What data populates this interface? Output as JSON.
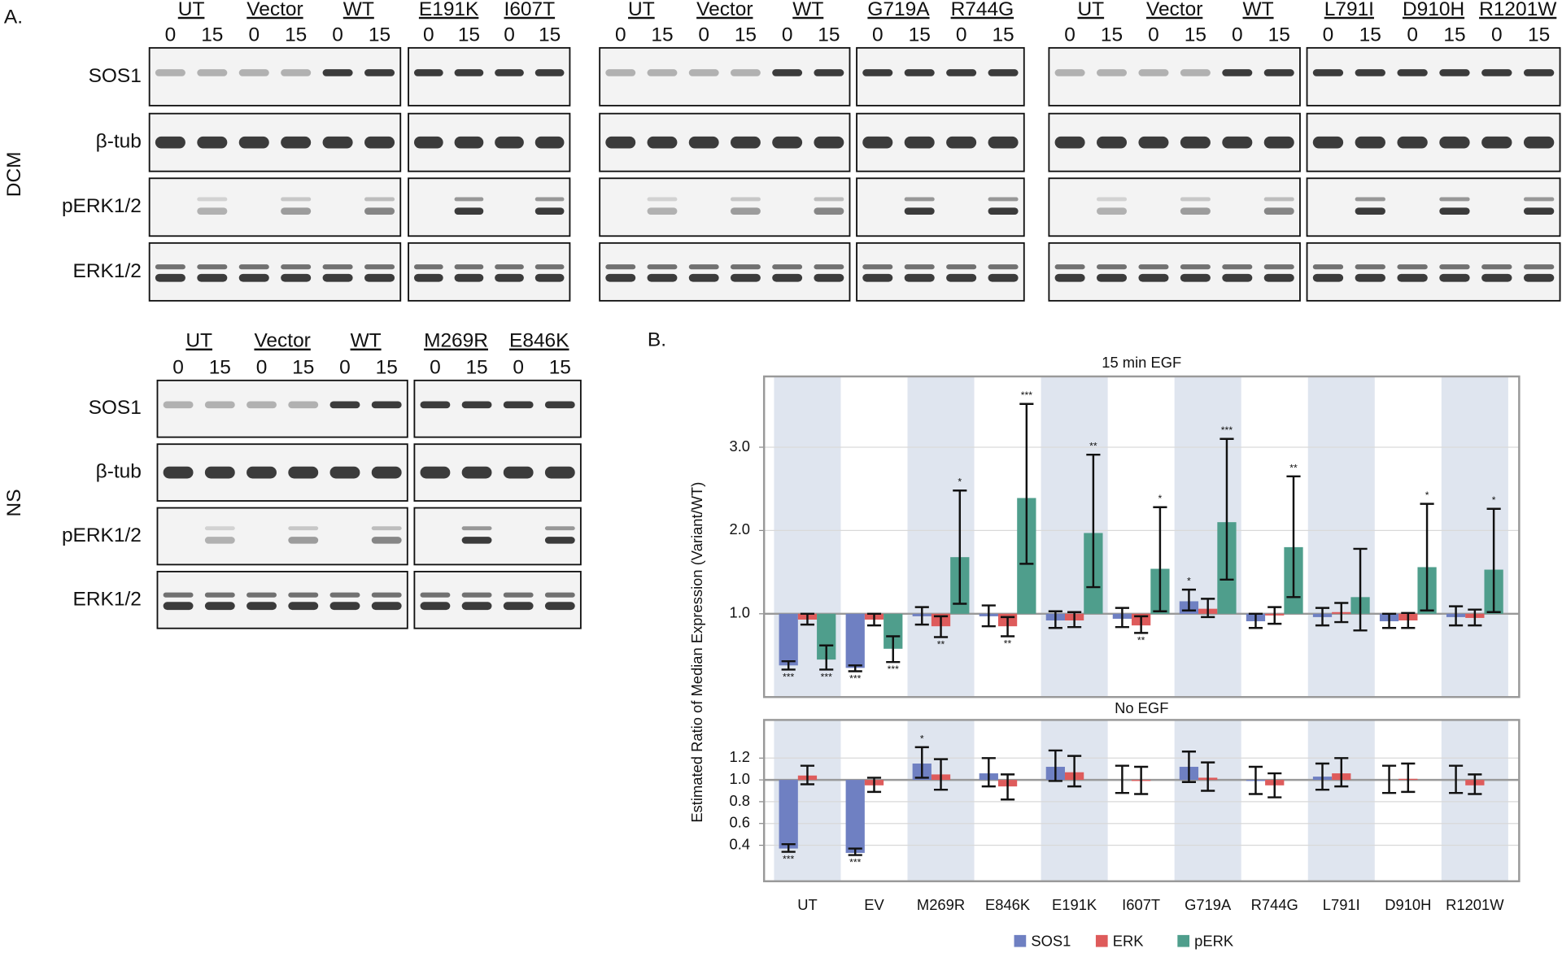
{
  "panel_a": {
    "label": "A.",
    "conditions": [
      {
        "name": "DCM",
        "row_labels": [
          "SOS1",
          "β-tub",
          "pERK1/2",
          "ERK1/2"
        ],
        "sets": [
          {
            "membranes": [
              {
                "groups": [
                  {
                    "name": "UT",
                    "times": [
                      "0",
                      "15"
                    ]
                  },
                  {
                    "name": "Vector",
                    "times": [
                      "0",
                      "15"
                    ]
                  },
                  {
                    "name": "WT",
                    "times": [
                      "0",
                      "15"
                    ]
                  }
                ]
              },
              {
                "groups": [
                  {
                    "name": "E191K",
                    "times": [
                      "0",
                      "15"
                    ]
                  },
                  {
                    "name": "I607T",
                    "times": [
                      "0",
                      "15"
                    ]
                  }
                ]
              }
            ]
          },
          {
            "membranes": [
              {
                "groups": [
                  {
                    "name": "UT",
                    "times": [
                      "0",
                      "15"
                    ]
                  },
                  {
                    "name": "Vector",
                    "times": [
                      "0",
                      "15"
                    ]
                  },
                  {
                    "name": "WT",
                    "times": [
                      "0",
                      "15"
                    ]
                  }
                ]
              },
              {
                "groups": [
                  {
                    "name": "G719A",
                    "times": [
                      "0",
                      "15"
                    ]
                  },
                  {
                    "name": "R744G",
                    "times": [
                      "0",
                      "15"
                    ]
                  }
                ]
              }
            ]
          },
          {
            "membranes": [
              {
                "groups": [
                  {
                    "name": "UT",
                    "times": [
                      "0",
                      "15"
                    ]
                  },
                  {
                    "name": "Vector",
                    "times": [
                      "0",
                      "15"
                    ]
                  },
                  {
                    "name": "WT",
                    "times": [
                      "0",
                      "15"
                    ]
                  }
                ]
              },
              {
                "groups": [
                  {
                    "name": "L791I",
                    "times": [
                      "0",
                      "15"
                    ]
                  },
                  {
                    "name": "D910H",
                    "times": [
                      "0",
                      "15"
                    ]
                  },
                  {
                    "name": "R1201W",
                    "times": [
                      "0",
                      "15"
                    ]
                  }
                ]
              }
            ]
          }
        ]
      },
      {
        "name": "NS",
        "row_labels": [
          "SOS1",
          "β-tub",
          "pERK1/2",
          "ERK1/2"
        ],
        "sets": [
          {
            "membranes": [
              {
                "groups": [
                  {
                    "name": "UT",
                    "times": [
                      "0",
                      "15"
                    ]
                  },
                  {
                    "name": "Vector",
                    "times": [
                      "0",
                      "15"
                    ]
                  },
                  {
                    "name": "WT",
                    "times": [
                      "0",
                      "15"
                    ]
                  }
                ]
              },
              {
                "groups": [
                  {
                    "name": "M269R",
                    "times": [
                      "0",
                      "15"
                    ]
                  },
                  {
                    "name": "E846K",
                    "times": [
                      "0",
                      "15"
                    ]
                  }
                ]
              }
            ]
          }
        ]
      }
    ]
  },
  "panel_b": {
    "label": "B."
  },
  "chart_data": [
    {
      "type": "bar",
      "title": "15 min EGF",
      "ylabel": "Estimated Ratio of Median Expression (Variant/WT)",
      "ylim": [
        0,
        3.85
      ],
      "yticks": [
        {
          "value": 1,
          "label": "1.0"
        },
        {
          "value": 2,
          "label": "2.0"
        },
        {
          "value": 3,
          "label": "3.0"
        }
      ],
      "grid": true,
      "hline": 1,
      "shade_color": "#dfe5ef",
      "series": [
        {
          "name": "SOS1",
          "color": "#6f80c2",
          "values": [
            0.38,
            0.35,
            0.97,
            0.97,
            0.92,
            0.94,
            1.15,
            0.91,
            0.96,
            0.91,
            0.96
          ],
          "ci": [
            [
              0.33,
              0.43
            ],
            [
              0.31,
              0.38
            ],
            [
              0.87,
              1.08
            ],
            [
              0.85,
              1.1
            ],
            [
              0.83,
              1.03
            ],
            [
              0.84,
              1.07
            ],
            [
              1.04,
              1.29
            ],
            [
              0.83,
              1.0
            ],
            [
              0.86,
              1.07
            ],
            [
              0.83,
              1.0
            ],
            [
              0.86,
              1.09
            ]
          ],
          "stars": [
            "***",
            "***",
            null,
            null,
            null,
            null,
            "*",
            null,
            null,
            null,
            null
          ]
        },
        {
          "name": "ERK",
          "color": "#de5b5b",
          "values": [
            0.93,
            0.93,
            0.85,
            0.85,
            0.92,
            0.86,
            1.06,
            0.98,
            1.02,
            0.92,
            0.95
          ],
          "ci": [
            [
              0.87,
              1.0
            ],
            [
              0.86,
              1.0
            ],
            [
              0.72,
              0.97
            ],
            [
              0.73,
              0.96
            ],
            [
              0.84,
              1.02
            ],
            [
              0.77,
              0.97
            ],
            [
              0.96,
              1.18
            ],
            [
              0.88,
              1.08
            ],
            [
              0.9,
              1.13
            ],
            [
              0.83,
              1.01
            ],
            [
              0.86,
              1.05
            ]
          ],
          "stars": [
            null,
            null,
            "**",
            "**",
            null,
            "**",
            null,
            null,
            null,
            null,
            null
          ]
        },
        {
          "name": "pERK",
          "color": "#4f9e8c",
          "values": [
            0.45,
            0.58,
            1.68,
            2.39,
            1.97,
            1.54,
            2.1,
            1.8,
            1.2,
            1.56,
            1.53
          ],
          "ci": [
            [
              0.33,
              0.62
            ],
            [
              0.42,
              0.73
            ],
            [
              1.12,
              2.48
            ],
            [
              1.6,
              3.52
            ],
            [
              1.32,
              2.91
            ],
            [
              1.03,
              2.28
            ],
            [
              1.41,
              3.1
            ],
            [
              1.2,
              2.65
            ],
            [
              0.8,
              1.78
            ],
            [
              1.04,
              2.32
            ],
            [
              1.02,
              2.26
            ]
          ],
          "stars": [
            "***",
            "***",
            "*",
            "***",
            "**",
            "*",
            "***",
            "**",
            null,
            "*",
            "*"
          ]
        }
      ]
    },
    {
      "type": "bar",
      "title": "No EGF",
      "categories": [
        "UT",
        "EV",
        "M269R",
        "E846K",
        "E191K",
        "I607T",
        "G719A",
        "R744G",
        "L791I",
        "D910H",
        "R1201W"
      ],
      "ylim": [
        0.07,
        1.55
      ],
      "yticks": [
        0.4,
        0.6,
        0.8,
        {
          "value": 1,
          "label": "1.0"
        },
        1.2
      ],
      "grid": true,
      "hline": 1,
      "shade_color": "#dfe5ef",
      "series": [
        {
          "color": "#6f80c2",
          "values": [
            0.37,
            0.33,
            1.15,
            1.06,
            1.12,
            1.0,
            1.12,
            0.99,
            1.03,
            1.0,
            1.0
          ],
          "ci": [
            [
              0.34,
              0.41
            ],
            [
              0.31,
              0.37
            ],
            [
              1.02,
              1.3
            ],
            [
              0.94,
              1.2
            ],
            [
              0.99,
              1.27
            ],
            [
              0.88,
              1.13
            ],
            [
              0.98,
              1.26
            ],
            [
              0.87,
              1.12
            ],
            [
              0.91,
              1.15
            ],
            [
              0.88,
              1.13
            ],
            [
              0.88,
              1.13
            ]
          ],
          "stars": [
            "***",
            "***",
            "*",
            null,
            null,
            null,
            null,
            null,
            null,
            null,
            null
          ]
        },
        {
          "color": "#de5b5b",
          "values": [
            1.04,
            0.95,
            1.05,
            0.94,
            1.07,
            0.99,
            1.02,
            0.95,
            1.06,
            1.01,
            0.95
          ],
          "ci": [
            [
              0.96,
              1.13
            ],
            [
              0.89,
              1.02
            ],
            [
              0.91,
              1.19
            ],
            [
              0.82,
              1.05
            ],
            [
              0.94,
              1.22
            ],
            [
              0.87,
              1.12
            ],
            [
              0.9,
              1.16
            ],
            [
              0.84,
              1.06
            ],
            [
              0.94,
              1.2
            ],
            [
              0.89,
              1.15
            ],
            [
              0.87,
              1.05
            ]
          ],
          "stars": [
            null,
            null,
            null,
            null,
            null,
            null,
            null,
            null,
            null,
            null,
            null
          ]
        }
      ]
    }
  ]
}
